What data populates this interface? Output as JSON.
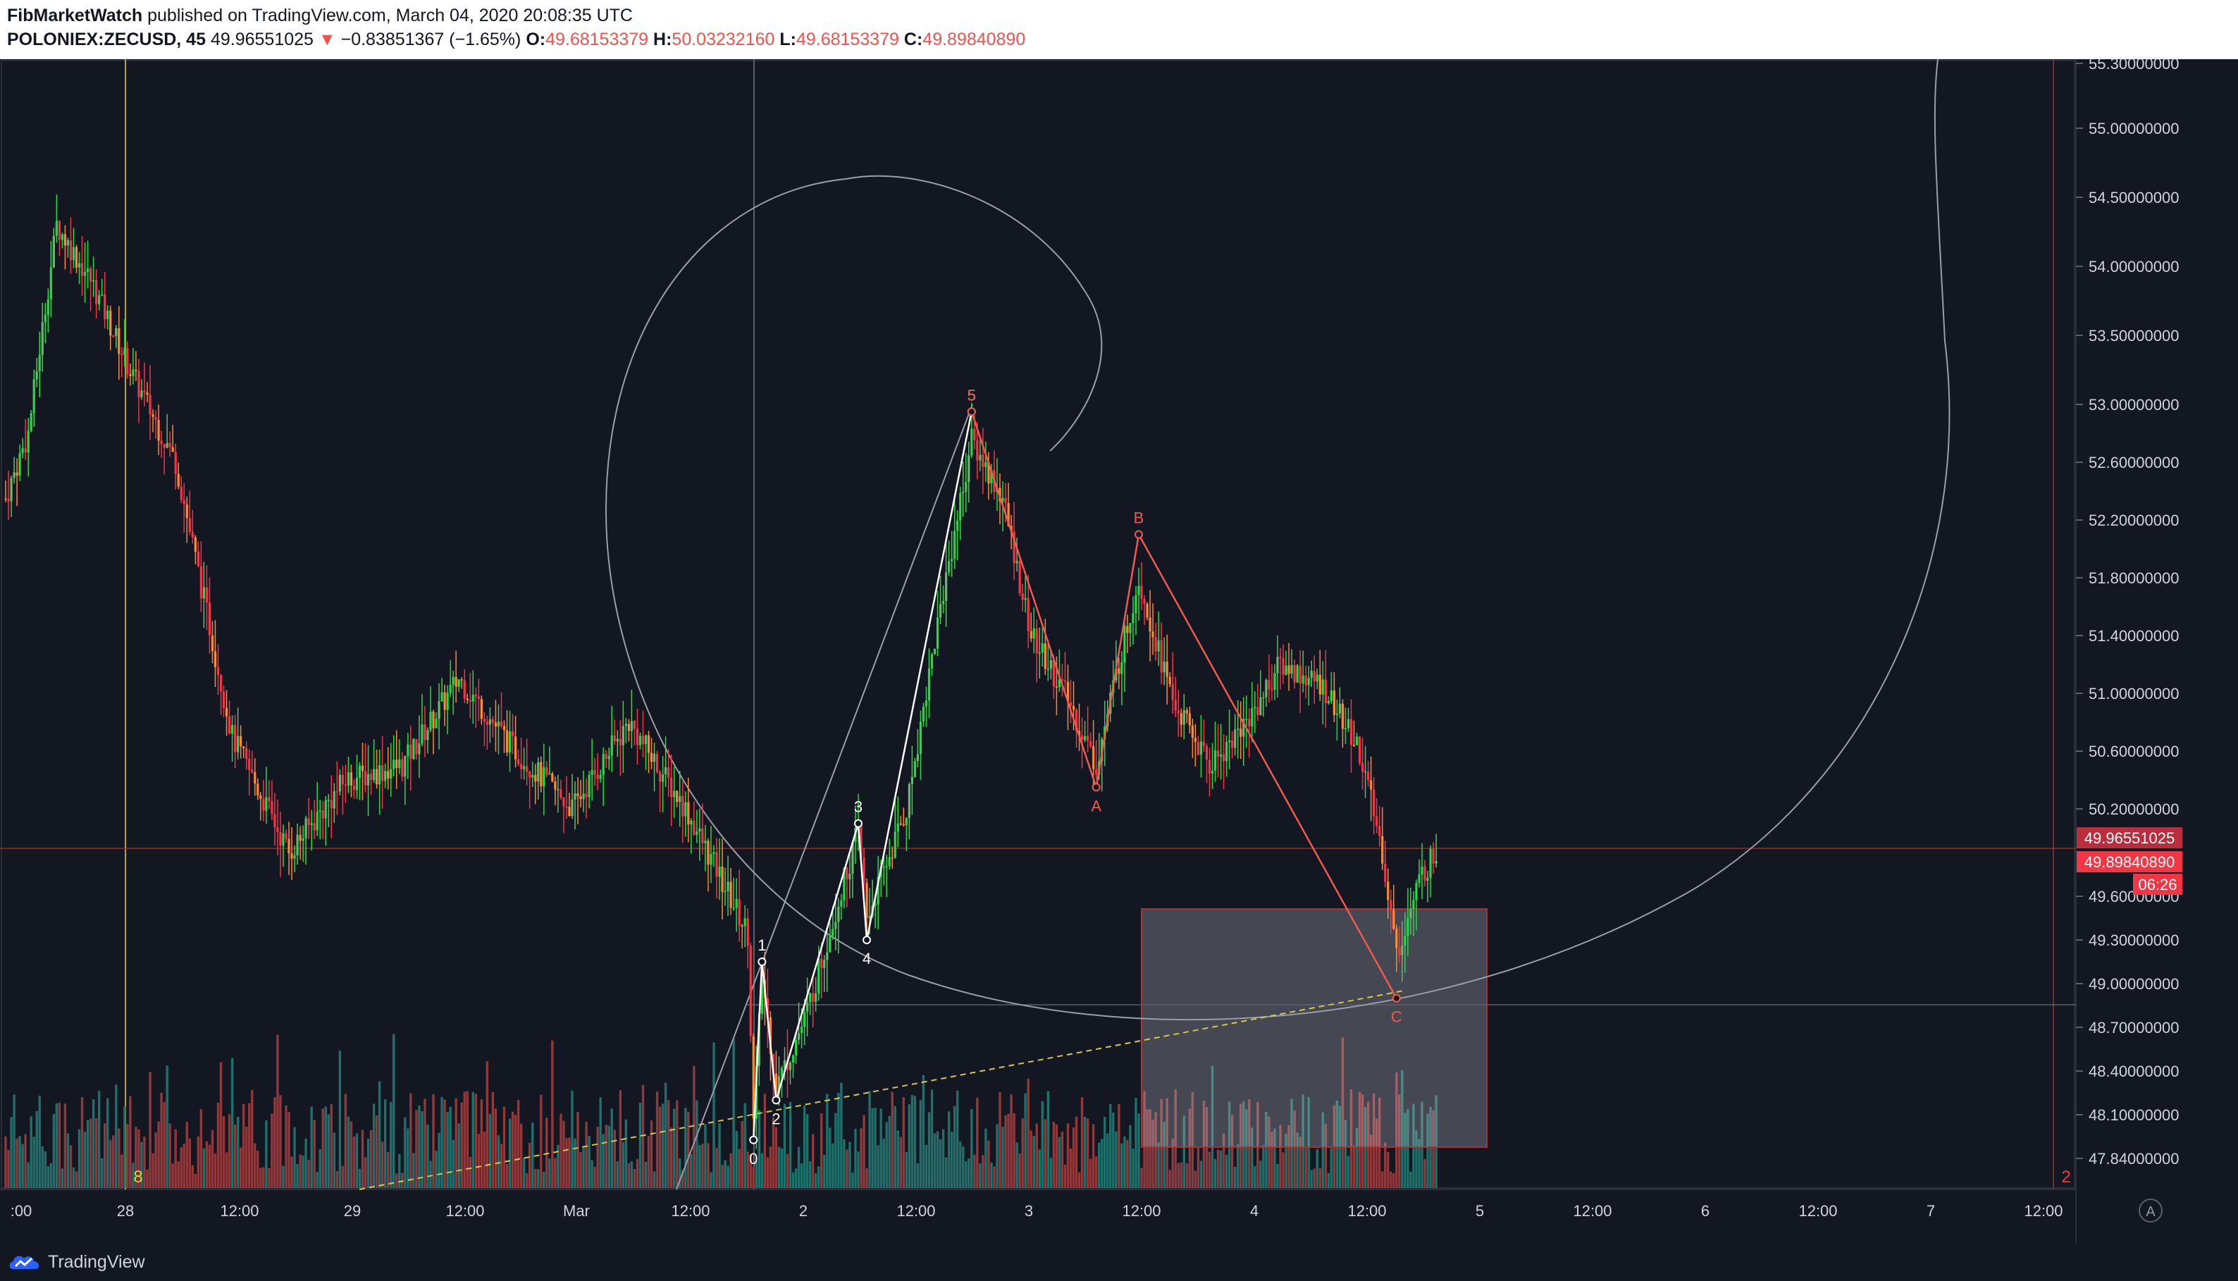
{
  "header": {
    "author": "FibMarketWatch",
    "published_text": "published on TradingView.com, March 04, 2020 20:08:35 UTC",
    "symbol": "POLONIEX:ZECUSD, 45",
    "last": "49.96551025",
    "change": "−0.83851367 (−1.65%)",
    "o_label": "O:",
    "o_value": "49.68153379",
    "h_label": "H:",
    "h_value": "50.03232160",
    "l_label": "L:",
    "l_value": "49.68153379",
    "c_label": "C:",
    "c_value": "49.89840890"
  },
  "footer": {
    "brand": "TradingView",
    "scale_button": "A"
  },
  "colors": {
    "background": "#131722",
    "bull": "#26d945",
    "bull_alt": "#66bb6a",
    "bear": "#f23645",
    "bear_alt": "#ff8a34",
    "vol_bull": "#1f6f6a",
    "vol_bear": "#8e3a3d",
    "wave_white": "#ffffff",
    "wave_red": "#f05a50",
    "price_badge": "#f23645"
  },
  "chart_data": {
    "type": "candlestick",
    "y_axis_ticks": [
      "55.30000000",
      "55.00000000",
      "54.50000000",
      "54.00000000",
      "53.50000000",
      "53.00000000",
      "52.60000000",
      "52.20000000",
      "51.80000000",
      "51.40000000",
      "51.00000000",
      "50.60000000",
      "50.20000000",
      "49.60000000",
      "49.30000000",
      "49.00000000",
      "48.70000000",
      "48.40000000",
      "48.10000000",
      "47.84000000"
    ],
    "x_axis_ticks": [
      ":00",
      "28",
      "12:00",
      "29",
      "12:00",
      "Mar",
      "12:00",
      "2",
      "12:00",
      "3",
      "12:00",
      "4",
      "12:00",
      "5",
      "12:00",
      "6",
      "12:00",
      "7",
      "12:00"
    ],
    "price_labels": {
      "last": "49.96551025",
      "close": "49.89840890",
      "countdown": "06:26"
    },
    "annotations": {
      "impulse_wave": [
        "0",
        "1",
        "2",
        "3",
        "4",
        "5"
      ],
      "correction_wave": [
        "A",
        "B",
        "C"
      ],
      "markers": [
        "8",
        "2"
      ]
    },
    "ohlc_last": {
      "open": 49.68153379,
      "high": 50.0323216,
      "low": 49.68153379,
      "close": 49.8984089
    },
    "series": [
      {
        "name": "impulse",
        "points": [
          {
            "label": "0",
            "time_index": 264,
            "price": 47.95
          },
          {
            "label": "1",
            "time_index": 267,
            "price": 49.15
          },
          {
            "label": "2",
            "time_index": 272,
            "price": 48.2
          },
          {
            "label": "3",
            "time_index": 301,
            "price": 50.1
          },
          {
            "label": "4",
            "time_index": 304,
            "price": 49.3
          },
          {
            "label": "5",
            "time_index": 341,
            "price": 52.95
          }
        ]
      },
      {
        "name": "correction",
        "points": [
          {
            "label": "5",
            "time_index": 341,
            "price": 52.95
          },
          {
            "label": "A",
            "time_index": 385,
            "price": 50.35
          },
          {
            "label": "B",
            "time_index": 400,
            "price": 52.1
          },
          {
            "label": "C",
            "time_index": 491,
            "price": 48.9
          }
        ]
      }
    ]
  }
}
